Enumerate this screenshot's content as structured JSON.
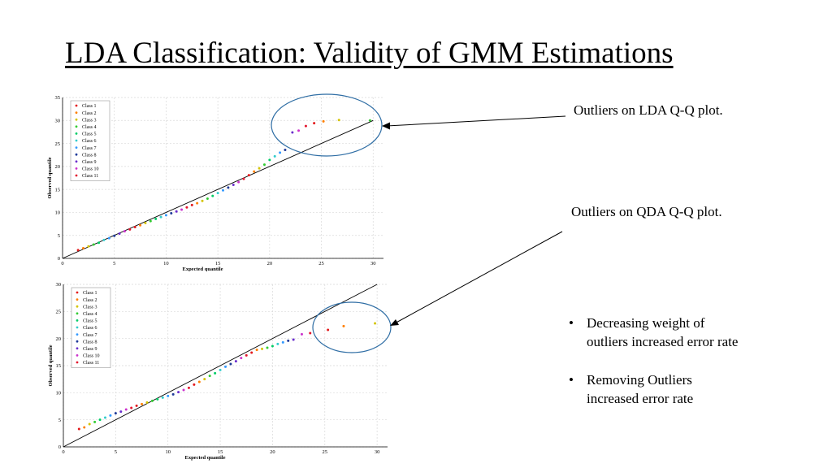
{
  "slide": {
    "title": "LDA Classification:  Validity of GMM Estimations",
    "callout_lda": "Outliers on LDA Q-Q plot.",
    "callout_qda": "Outliers on QDA Q-Q plot.",
    "bullets": [
      "Decreasing weight of outliers increased error rate",
      "Removing Outliers increased error rate"
    ],
    "bullet_symbol": "•"
  },
  "colors": {
    "class_colors": [
      "#e31a1c",
      "#ff7f00",
      "#d4c400",
      "#33cc33",
      "#00cc66",
      "#33cccc",
      "#3399ff",
      "#1f3a99",
      "#6a2ecc",
      "#cc33cc",
      "#e3172e"
    ],
    "callout_ellipse": "#2e6da4",
    "reference_line": "#000000",
    "grid": "#d9d9d9"
  },
  "chart_data": [
    {
      "type": "scatter",
      "xlabel": "Expected quantile",
      "ylabel": "Observed quantile",
      "xlim": [
        0,
        31
      ],
      "ylim": [
        0,
        35
      ],
      "xticks": [
        0,
        5,
        10,
        15,
        20,
        25,
        30
      ],
      "yticks": [
        0,
        5,
        10,
        15,
        20,
        25,
        30,
        35
      ],
      "reference_line": [
        [
          0,
          0
        ],
        [
          30,
          30
        ]
      ],
      "grid": true,
      "legend_position": "top-left",
      "legend": [
        "Class 1",
        "Class 2",
        "Class 3",
        "Class 4",
        "Class 5",
        "Class 6",
        "Class 7",
        "Class 8",
        "Class 9",
        "Class 10",
        "Class 11"
      ],
      "points": [
        [
          1.5,
          1.8
        ],
        [
          2,
          2.2
        ],
        [
          2.5,
          2.6
        ],
        [
          3,
          3
        ],
        [
          3.5,
          3.4
        ],
        [
          4,
          4
        ],
        [
          4.5,
          4.4
        ],
        [
          5,
          4.9
        ],
        [
          5.5,
          5.4
        ],
        [
          6,
          5.9
        ],
        [
          6.5,
          6.3
        ],
        [
          7,
          6.8
        ],
        [
          7.5,
          7.2
        ],
        [
          8,
          7.7
        ],
        [
          8.5,
          8.1
        ],
        [
          9,
          8.6
        ],
        [
          9.5,
          9.0
        ],
        [
          10,
          9.4
        ],
        [
          10.5,
          9.8
        ],
        [
          11,
          10.2
        ],
        [
          11.5,
          10.6
        ],
        [
          12,
          11.1
        ],
        [
          12.5,
          11.6
        ],
        [
          13,
          12.0
        ],
        [
          13.5,
          12.5
        ],
        [
          14,
          13.0
        ],
        [
          14.5,
          13.6
        ],
        [
          15,
          14.2
        ],
        [
          15.5,
          14.8
        ],
        [
          16,
          15.4
        ],
        [
          16.5,
          16.0
        ],
        [
          17,
          16.6
        ],
        [
          17.5,
          17.3
        ],
        [
          18,
          18.1
        ],
        [
          18.5,
          18.9
        ],
        [
          19,
          19.6
        ],
        [
          19.5,
          20.4
        ],
        [
          20,
          21.4
        ],
        [
          20.5,
          22.2
        ],
        [
          21,
          23.0
        ],
        [
          21.5,
          23.6
        ],
        [
          22.2,
          27.4
        ],
        [
          22.8,
          27.8
        ],
        [
          23.5,
          28.8
        ],
        [
          24.3,
          29.4
        ],
        [
          25.2,
          29.8
        ],
        [
          26.7,
          30.1
        ],
        [
          29.7,
          30.0
        ]
      ]
    },
    {
      "type": "scatter",
      "xlabel": "Expected quantile",
      "ylabel": "Observed quantile",
      "xlim": [
        0,
        31
      ],
      "ylim": [
        0,
        30
      ],
      "xticks": [
        0,
        5,
        10,
        15,
        20,
        25,
        30
      ],
      "yticks": [
        0,
        5,
        10,
        15,
        20,
        25,
        30
      ],
      "reference_line": [
        [
          0,
          0
        ],
        [
          30,
          30
        ]
      ],
      "grid": true,
      "legend_position": "top-left",
      "legend": [
        "Class 1",
        "Class 2",
        "Class 3",
        "Class 4",
        "Class 5",
        "Class 6",
        "Class 7",
        "Class 8",
        "Class 9",
        "Class 10",
        "Class 11"
      ],
      "points": [
        [
          1.5,
          3.3
        ],
        [
          2,
          3.6
        ],
        [
          2.5,
          4.2
        ],
        [
          3,
          4.6
        ],
        [
          3.5,
          5.0
        ],
        [
          4,
          5.4
        ],
        [
          4.5,
          5.8
        ],
        [
          5,
          6.2
        ],
        [
          5.5,
          6.5
        ],
        [
          6,
          6.9
        ],
        [
          6.5,
          7.2
        ],
        [
          7,
          7.6
        ],
        [
          7.5,
          7.9
        ],
        [
          8,
          8.2
        ],
        [
          8.5,
          8.5
        ],
        [
          9,
          8.8
        ],
        [
          9.5,
          9.1
        ],
        [
          10,
          9.4
        ],
        [
          10.5,
          9.7
        ],
        [
          11,
          10.1
        ],
        [
          11.5,
          10.5
        ],
        [
          12,
          10.9
        ],
        [
          12.5,
          11.5
        ],
        [
          13,
          12.0
        ],
        [
          13.5,
          12.5
        ],
        [
          14,
          13.1
        ],
        [
          14.5,
          13.6
        ],
        [
          15,
          14.2
        ],
        [
          15.5,
          14.8
        ],
        [
          16,
          15.3
        ],
        [
          16.5,
          15.8
        ],
        [
          17,
          16.4
        ],
        [
          17.5,
          16.9
        ],
        [
          18,
          17.4
        ],
        [
          18.5,
          17.9
        ],
        [
          19,
          18.1
        ],
        [
          19.5,
          18.3
        ],
        [
          20,
          18.6
        ],
        [
          20.5,
          19.0
        ],
        [
          21,
          19.3
        ],
        [
          21.5,
          19.6
        ],
        [
          22,
          19.8
        ],
        [
          22.8,
          20.8
        ],
        [
          23.6,
          21.0
        ],
        [
          25.3,
          21.6
        ],
        [
          26.8,
          22.3
        ],
        [
          29.8,
          22.8
        ]
      ]
    }
  ]
}
